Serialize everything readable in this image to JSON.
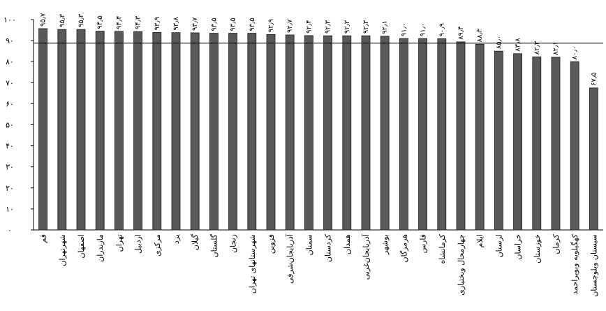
{
  "chart_data": {
    "type": "bar",
    "categories": [
      "قم",
      "شهرتهران",
      "اصفهان",
      "مازندران",
      "تهران",
      "اردبیل",
      "مرکزی",
      "یزد",
      "گیلان",
      "گلستان",
      "زنجان",
      "شهرستانهای تهران",
      "قزوین",
      "آذربایجان‌شرقی",
      "سمنان",
      "کردستان",
      "همدان",
      "آذربایجان‌غربی",
      "بوشهر",
      "هرمزگان",
      "فارس",
      "کرمانشاه",
      "چهارمحال وبختیاری",
      "ایلام",
      "لرستان",
      "خراسان",
      "خوزستان",
      "کرمان",
      "کهگیلویه وبویراحمد",
      "سیستان وبلوچستان"
    ],
    "values": [
      95.7,
      95.3,
      95.3,
      94.5,
      94.4,
      94.3,
      93.9,
      93.8,
      93.7,
      93.5,
      93.5,
      93.5,
      92.9,
      92.7,
      92.4,
      92.3,
      92.3,
      92.3,
      92.1,
      91.0,
      91.0,
      90.9,
      89.4,
      88.3,
      85.0,
      83.8,
      82.3,
      82.1,
      80.0,
      67.5
    ],
    "value_labels": [
      "۹۵٫۷",
      "۹۵٫۳",
      "۹۵٫۳",
      "۹۴٫۵",
      "۹۴٫۴",
      "۹۴٫۳",
      "۹۳٫۹",
      "۹۳٫۸",
      "۹۳٫۷",
      "۹۳٫۵",
      "۹۳٫۵",
      "۹۳٫۵",
      "۹۲٫۹",
      "۹۲٫۷",
      "۹۲٫۴",
      "۹۲٫۳",
      "۹۲٫۳",
      "۹۲٫۳",
      "۹۲٫۱",
      "۹۱٫۰",
      "۹۱٫۰",
      "۹۰٫۹",
      "۸۹٫۴",
      "۸۸٫۳",
      "۸۵٫۰",
      "۸۳٫۸",
      "۸۲٫۳",
      "۸۲٫۱",
      "۸۰٫۰",
      "۶۷٫۵"
    ],
    "yticks": [
      0,
      10,
      20,
      30,
      40,
      50,
      60,
      70,
      80,
      90,
      100
    ],
    "ytick_labels": [
      "۰",
      "۱۰",
      "۲۰",
      "۳۰",
      "۴۰",
      "۵۰",
      "۶۰",
      "۷۰",
      "۸۰",
      "۹۰",
      "۱۰۰"
    ],
    "ylim": [
      0,
      100
    ],
    "reference_line": 88.8,
    "grid": false,
    "colors": {
      "bar": "#595959",
      "bar_stroke": "#1a1a1a",
      "axis": "#000000",
      "reference_line": "#000000"
    }
  }
}
